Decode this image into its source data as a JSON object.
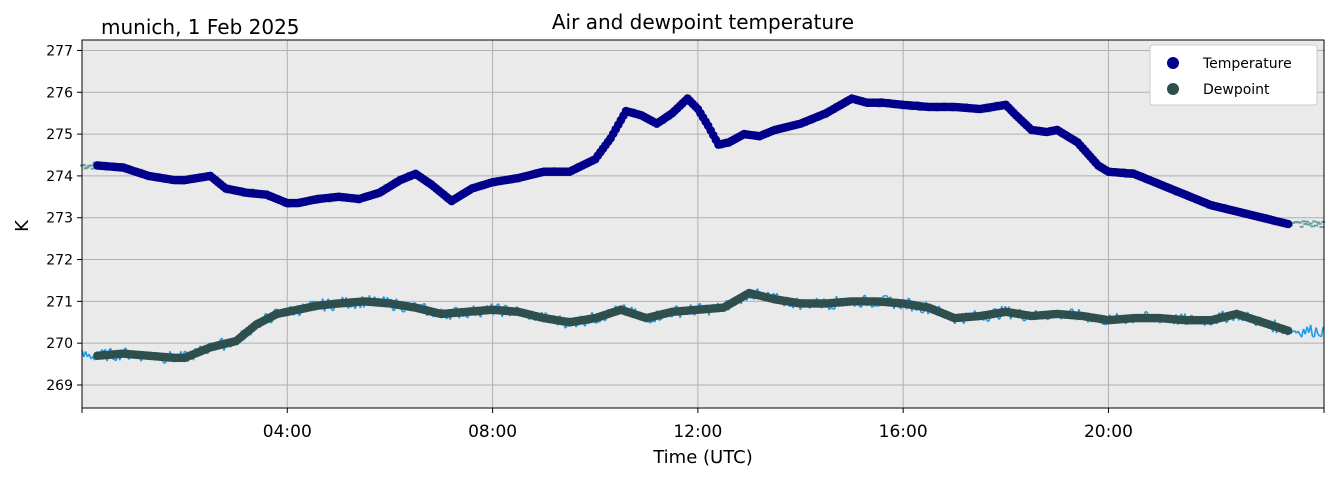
{
  "chart_data": {
    "type": "scatter",
    "title": "Air and dewpoint temperature",
    "subtitle": "munich, 1 Feb 2025",
    "xlabel": "Time (UTC)",
    "ylabel": "K",
    "x_unit": "hours UTC",
    "xlim": [
      0,
      24.2
    ],
    "ylim": [
      268.45,
      277.25
    ],
    "x_ticks": [
      {
        "value": 4,
        "label": "04:00"
      },
      {
        "value": 8,
        "label": "08:00"
      },
      {
        "value": 12,
        "label": "12:00"
      },
      {
        "value": 16,
        "label": "16:00"
      },
      {
        "value": 20,
        "label": "20:00"
      }
    ],
    "y_ticks": [
      269,
      270,
      271,
      272,
      273,
      274,
      275,
      276,
      277
    ],
    "grid": true,
    "legend_position": "top-right",
    "series": [
      {
        "name": "Temperature",
        "color": "#00008b",
        "raw_color": "#6b9e9e",
        "x": [
          0.3,
          0.8,
          1.3,
          1.8,
          2.0,
          2.5,
          2.8,
          3.2,
          3.6,
          4.0,
          4.2,
          4.6,
          5.0,
          5.4,
          5.8,
          6.2,
          6.5,
          6.8,
          7.2,
          7.6,
          8.0,
          8.5,
          9.0,
          9.5,
          10.0,
          10.3,
          10.6,
          10.9,
          11.2,
          11.5,
          11.8,
          12.0,
          12.2,
          12.4,
          12.6,
          12.9,
          13.2,
          13.5,
          14.0,
          14.5,
          15.0,
          15.3,
          15.6,
          16.0,
          16.5,
          17.0,
          17.5,
          18.0,
          18.2,
          18.5,
          18.8,
          19.0,
          19.4,
          19.8,
          20.0,
          20.5,
          21.0,
          21.5,
          22.0,
          22.5,
          23.0,
          23.5
        ],
        "values": [
          274.25,
          274.2,
          274.0,
          273.9,
          273.9,
          274.0,
          273.7,
          273.6,
          273.55,
          273.35,
          273.35,
          273.45,
          273.5,
          273.45,
          273.6,
          273.9,
          274.05,
          273.8,
          273.4,
          273.7,
          273.85,
          273.95,
          274.1,
          274.1,
          274.4,
          274.9,
          275.55,
          275.45,
          275.25,
          275.5,
          275.85,
          275.6,
          275.2,
          274.75,
          274.8,
          275.0,
          274.95,
          275.1,
          275.25,
          275.5,
          275.85,
          275.75,
          275.75,
          275.7,
          275.65,
          275.65,
          275.6,
          275.7,
          275.45,
          275.1,
          275.05,
          275.1,
          274.8,
          274.25,
          274.1,
          274.05,
          273.8,
          273.55,
          273.3,
          273.15,
          273.0,
          272.85
        ]
      },
      {
        "name": "Dewpoint",
        "color": "#2f4f4f",
        "raw_color": "#1e9be8",
        "x": [
          0.3,
          0.8,
          1.3,
          1.8,
          2.0,
          2.3,
          2.5,
          3.0,
          3.4,
          3.8,
          4.2,
          4.6,
          5.0,
          5.5,
          6.0,
          6.5,
          7.0,
          7.5,
          8.0,
          8.5,
          9.0,
          9.5,
          10.0,
          10.5,
          11.0,
          11.5,
          12.0,
          12.5,
          13.0,
          13.5,
          14.0,
          14.5,
          15.0,
          15.5,
          16.0,
          16.5,
          17.0,
          17.5,
          18.0,
          18.5,
          19.0,
          19.5,
          20.0,
          20.5,
          21.0,
          21.5,
          22.0,
          22.5,
          23.0,
          23.5
        ],
        "values": [
          269.7,
          269.75,
          269.7,
          269.65,
          269.65,
          269.8,
          269.9,
          270.05,
          270.45,
          270.7,
          270.8,
          270.9,
          270.95,
          271.0,
          270.95,
          270.85,
          270.7,
          270.75,
          270.8,
          270.75,
          270.6,
          270.5,
          270.6,
          270.8,
          270.6,
          270.75,
          270.8,
          270.85,
          271.2,
          271.05,
          270.95,
          270.95,
          271.0,
          271.0,
          270.95,
          270.85,
          270.6,
          270.65,
          270.75,
          270.65,
          270.7,
          270.65,
          270.55,
          270.6,
          270.6,
          270.55,
          270.55,
          270.7,
          270.5,
          270.3
        ]
      }
    ]
  }
}
